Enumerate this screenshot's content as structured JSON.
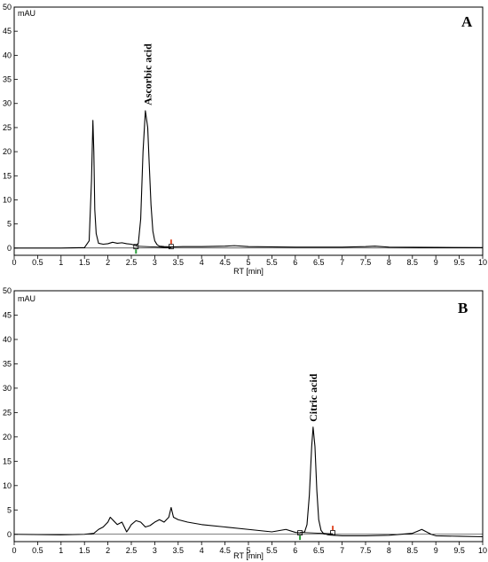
{
  "chart_data": [
    {
      "type": "line",
      "panel_label": "A",
      "ylabel": "mAU",
      "xlabel": "RT [min]",
      "xlim": [
        0,
        10
      ],
      "ylim": [
        -1.5,
        50
      ],
      "xticks": [
        0,
        0.5,
        1,
        1.5,
        2,
        2.5,
        3,
        3.5,
        4,
        4.5,
        5,
        5.5,
        6,
        6.5,
        7,
        7.5,
        8,
        8.5,
        9,
        9.5,
        10
      ],
      "yticks": [
        0,
        5,
        10,
        15,
        20,
        25,
        30,
        35,
        40,
        45,
        50
      ],
      "grid": false,
      "series": [
        {
          "x": [
            0,
            1.0,
            1.5,
            1.6,
            1.65,
            1.68,
            1.7,
            1.72,
            1.75,
            1.8,
            1.9,
            2.0,
            2.1,
            2.2,
            2.3,
            2.4,
            2.5,
            2.6,
            2.65,
            2.7,
            2.75,
            2.8,
            2.85,
            2.88,
            2.92,
            2.96,
            3.0,
            3.05,
            3.1,
            3.2,
            3.4,
            3.6,
            4.0,
            4.5,
            4.7,
            5.0,
            6.0,
            7.0,
            7.5,
            7.7,
            8.0,
            9.0,
            10.0
          ],
          "y": [
            0,
            0,
            0.1,
            1.5,
            14.0,
            26.5,
            20.0,
            8.0,
            3.0,
            1.0,
            0.8,
            0.9,
            1.2,
            1.0,
            1.1,
            0.9,
            0.8,
            0.5,
            1.0,
            6.0,
            20.0,
            28.5,
            25.0,
            18.0,
            9.0,
            3.5,
            1.5,
            0.7,
            0.4,
            0.3,
            0.25,
            0.3,
            0.3,
            0.4,
            0.5,
            0.3,
            0.2,
            0.2,
            0.3,
            0.4,
            0.2,
            0.15,
            0.1
          ]
        }
      ],
      "baseline_markers": [
        {
          "x": 2.6,
          "color": "#2a9d3a"
        },
        {
          "x": 3.35,
          "color": "#e05030"
        }
      ],
      "annotations": [
        {
          "text": "Ascorbic acid",
          "x": 2.85
        }
      ]
    },
    {
      "type": "line",
      "panel_label": "B",
      "ylabel": "mAU",
      "xlabel": "RT [min]",
      "xlim": [
        0,
        10
      ],
      "ylim": [
        -1.5,
        50
      ],
      "xticks": [
        0,
        0.5,
        1,
        1.5,
        2,
        2.5,
        3,
        3.5,
        4,
        4.5,
        5,
        5.5,
        6,
        6.5,
        7,
        7.5,
        8,
        8.5,
        9,
        9.5,
        10
      ],
      "yticks": [
        0,
        5,
        10,
        15,
        20,
        25,
        30,
        35,
        40,
        45,
        50
      ],
      "grid": false,
      "series": [
        {
          "x": [
            0,
            1.0,
            1.5,
            1.7,
            1.8,
            1.9,
            2.0,
            2.05,
            2.1,
            2.2,
            2.3,
            2.4,
            2.45,
            2.5,
            2.6,
            2.7,
            2.8,
            2.9,
            3.0,
            3.1,
            3.2,
            3.3,
            3.35,
            3.4,
            3.5,
            3.7,
            4.0,
            4.5,
            5.0,
            5.5,
            5.8,
            6.0,
            6.1,
            6.2,
            6.25,
            6.3,
            6.35,
            6.38,
            6.42,
            6.46,
            6.5,
            6.55,
            6.6,
            6.7,
            6.8,
            7.0,
            7.5,
            8.0,
            8.5,
            8.6,
            8.7,
            8.8,
            8.9,
            9.0,
            9.5,
            10.0
          ],
          "y": [
            0,
            -0.1,
            0,
            0.2,
            1.0,
            1.5,
            2.5,
            3.5,
            3.0,
            2.0,
            2.5,
            0.5,
            1.2,
            2.0,
            2.8,
            2.5,
            1.5,
            1.8,
            2.5,
            3.0,
            2.5,
            3.5,
            5.5,
            3.5,
            3.0,
            2.5,
            2.0,
            1.5,
            1.0,
            0.5,
            1.0,
            0.4,
            0.3,
            0.5,
            2.0,
            8.0,
            18.0,
            22.0,
            18.0,
            9.0,
            3.0,
            0.8,
            0.2,
            -0.1,
            -0.2,
            -0.3,
            -0.3,
            -0.2,
            0.2,
            0.6,
            1.0,
            0.5,
            0.0,
            -0.3,
            -0.4,
            -0.5
          ]
        }
      ],
      "baseline_markers": [
        {
          "x": 6.1,
          "color": "#2a9d3a"
        },
        {
          "x": 6.8,
          "color": "#e05030"
        }
      ],
      "annotations": [
        {
          "text": "Citric acid",
          "x": 6.38
        }
      ]
    }
  ]
}
